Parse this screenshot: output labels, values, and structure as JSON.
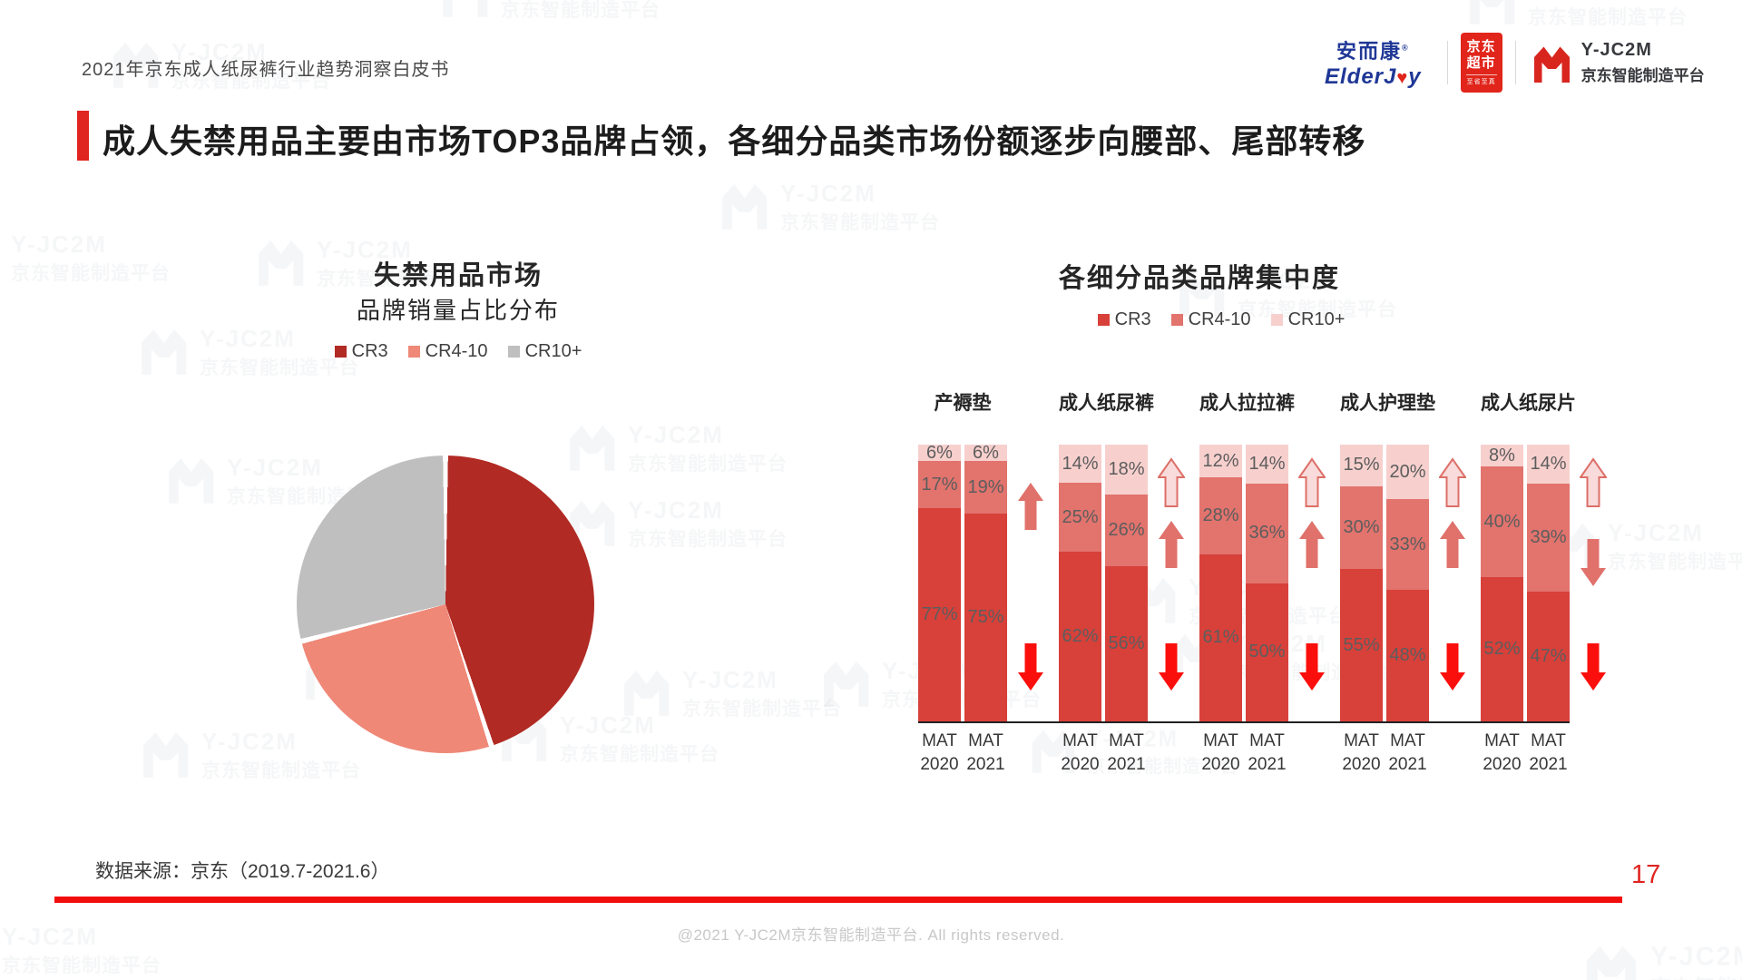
{
  "page": {
    "header_note": "2021年京东成人纸尿裤行业趋势洞察白皮书",
    "title": "成人失禁用品主要由市场TOP3品牌占领，各细分品类市场份额逐步向腰部、尾部转移",
    "source_note": "数据来源：京东（2019.7-2021.6）",
    "page_number": "17",
    "footer": "@2021 Y-JC2M京东智能制造平台. All rights reserved.",
    "accent_red": "#e02420",
    "line_red": "#f20d0d"
  },
  "logos": {
    "elderjoy": {
      "cn": "安而康",
      "en_left": "ElderJ",
      "en_right": "y",
      "color": "#1f3796"
    },
    "jd_supermarket": {
      "line1": "京东",
      "line2": "超市",
      "line3": "至省至真",
      "bg": "#e1251b"
    },
    "yjc2m": {
      "name": "Y-JC2M",
      "subtitle": "京东智能制造平台",
      "color": "#d8261f"
    }
  },
  "watermark": {
    "line1": "Y-JC2M",
    "line2": "京东智能制造平台"
  },
  "chart_data": [
    {
      "type": "pie",
      "title": "失禁用品市场",
      "subtitle": "品牌销量占比分布",
      "legend": [
        "CR3",
        "CR4-10",
        "CR10+"
      ],
      "labels": [
        "CR3",
        "CR4-10",
        "CR10+"
      ],
      "values": [
        45,
        26,
        29
      ],
      "colors": [
        "#b12a24",
        "#ef8877",
        "#c0bfbf"
      ],
      "start_angle_deg": 0,
      "data_labels_shown": false
    },
    {
      "type": "bar",
      "stacked": true,
      "title": "各细分品类品牌集中度",
      "legend": [
        "CR3",
        "CR4-10",
        "CR10+"
      ],
      "colors": [
        "#d8403a",
        "#e2736d",
        "#f7d0ce"
      ],
      "unit": "%",
      "ylim": [
        0,
        100
      ],
      "series_order_bottom_to_top": [
        "CR3",
        "CR4-10",
        "CR10+"
      ],
      "x_labels": [
        "MAT 2020",
        "MAT 2021"
      ],
      "groups": [
        {
          "category": "产褥垫",
          "values": [
            [
              77,
              17,
              6
            ],
            [
              75,
              19,
              6
            ]
          ],
          "arrows": [
            "up-solid",
            "down-red"
          ]
        },
        {
          "category": "成人纸尿裤",
          "values": [
            [
              62,
              25,
              14
            ],
            [
              56,
              26,
              18
            ]
          ],
          "arrows": [
            "up-outline",
            "up-solid",
            "down-red"
          ]
        },
        {
          "category": "成人拉拉裤",
          "values": [
            [
              61,
              28,
              12
            ],
            [
              50,
              36,
              14
            ]
          ],
          "arrows": [
            "up-outline",
            "up-solid",
            "down-red"
          ]
        },
        {
          "category": "成人护理垫",
          "values": [
            [
              55,
              30,
              15
            ],
            [
              48,
              33,
              20
            ]
          ],
          "arrows": [
            "up-outline",
            "up-solid",
            "down-red"
          ]
        },
        {
          "category": "成人纸尿片",
          "values": [
            [
              52,
              40,
              8
            ],
            [
              47,
              39,
              14
            ]
          ],
          "arrows": [
            "up-outline",
            "down-solid",
            "down-red"
          ]
        }
      ]
    }
  ]
}
